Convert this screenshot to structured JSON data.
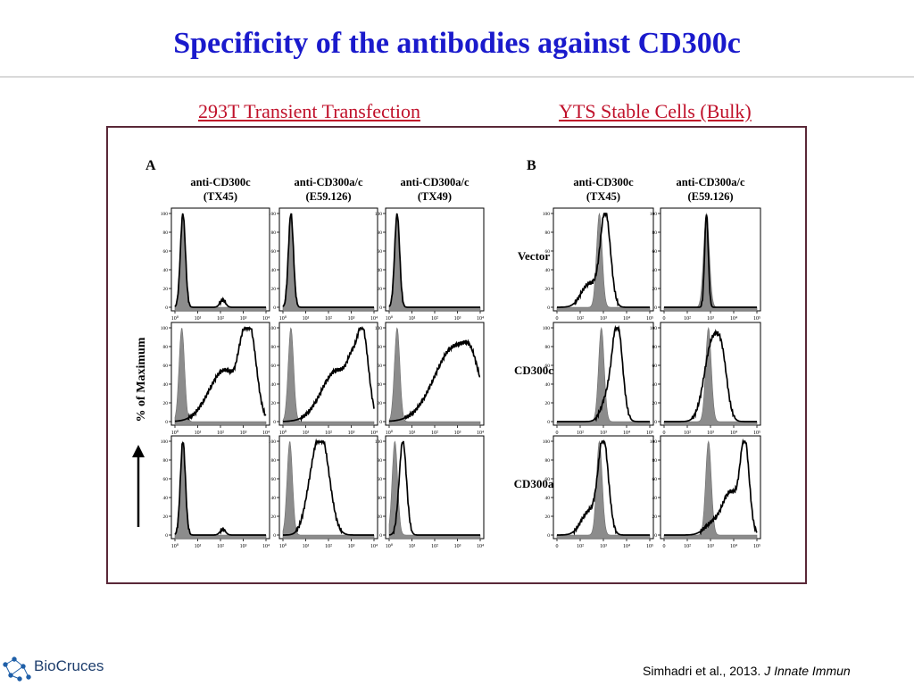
{
  "slide": {
    "title": "Specificity of the antibodies against CD300c",
    "section_left": "293T Transient Transfection",
    "section_right": "YTS Stable Cells (Bulk)",
    "citation_authors": "Simhadri et al., 2013.",
    "citation_journal": "J Innate Immun",
    "logo_text": "BioCruces"
  },
  "chart_data": [
    {
      "type": "histogram-grid",
      "panel": "A",
      "ylabel": "% of Maximum",
      "yticks": [
        "0",
        "20",
        "40",
        "60",
        "80",
        "100"
      ],
      "xticks": [
        "10⁰",
        "10¹",
        "10²",
        "10³",
        "10⁴"
      ],
      "columns": [
        {
          "line1": "anti-CD300c",
          "line2": "(TX45)"
        },
        {
          "line1": "anti-CD300a/c",
          "line2": "(E59.126)"
        },
        {
          "line1": "anti-CD300a/c",
          "line2": "(TX49)"
        }
      ],
      "rows": [
        "Vector",
        "CD300c",
        "CD300a"
      ],
      "series_colors": {
        "isotype_fill": "#8c8c8c",
        "stain_line": "#000000"
      },
      "histograms": [
        [
          {
            "isotype_peak_log": 0.35,
            "stain": [
              [
                0.35,
                0.11,
                100
              ],
              [
                2.1,
                0.12,
                8
              ]
            ]
          },
          {
            "isotype_peak_log": 0.35,
            "stain": [
              [
                0.35,
                0.11,
                100
              ]
            ]
          },
          {
            "isotype_peak_log": 0.35,
            "stain": [
              [
                0.35,
                0.11,
                100
              ]
            ]
          }
        ],
        [
          {
            "isotype_peak_log": 0.3,
            "stain": [
              [
                2.2,
                0.7,
                55
              ],
              [
                3.3,
                0.28,
                85
              ],
              [
                2.9,
                0.18,
                25
              ]
            ]
          },
          {
            "isotype_peak_log": 0.35,
            "stain": [
              [
                2.4,
                0.7,
                55
              ],
              [
                3.5,
                0.25,
                85
              ],
              [
                3.0,
                0.2,
                25
              ]
            ]
          },
          {
            "isotype_peak_log": 0.35,
            "stain": [
              [
                2.9,
                0.9,
                80
              ],
              [
                3.6,
                0.3,
                20
              ]
            ]
          }
        ],
        [
          {
            "isotype_peak_log": 0.35,
            "stain": [
              [
                0.35,
                0.11,
                100
              ],
              [
                2.1,
                0.12,
                6
              ]
            ]
          },
          {
            "isotype_peak_log": 0.3,
            "stain": [
              [
                1.7,
                0.35,
                100
              ],
              [
                1.2,
                0.3,
                30
              ]
            ]
          },
          {
            "isotype_peak_log": 0.25,
            "stain": [
              [
                0.6,
                0.16,
                100
              ]
            ]
          }
        ]
      ]
    },
    {
      "type": "histogram-grid",
      "panel": "B",
      "yticks": [
        "0",
        "20",
        "40",
        "60",
        "80",
        "100"
      ],
      "xticks": [
        "0",
        "10²",
        "10³",
        "10⁴",
        "10⁵"
      ],
      "columns": [
        {
          "line1": "anti-CD300c",
          "line2": "(TX45)"
        },
        {
          "line1": "anti-CD300a/c",
          "line2": "(E59.126)"
        }
      ],
      "rows": [
        "Vector",
        "CD300c",
        "CD300a"
      ],
      "series_colors": {
        "isotype_fill": "#8c8c8c",
        "stain_line": "#000000"
      },
      "histograms": [
        [
          {
            "isotype_peak_log": 2.1,
            "stain": [
              [
                2.4,
                0.25,
                100
              ],
              [
                1.6,
                0.4,
                25
              ]
            ]
          },
          {
            "isotype_peak_log": 2.1,
            "stain": [
              [
                2.1,
                0.09,
                100
              ]
            ]
          }
        ],
        [
          {
            "isotype_peak_log": 2.2,
            "stain": [
              [
                3.0,
                0.25,
                100
              ],
              [
                2.5,
                0.3,
                25
              ]
            ]
          },
          {
            "isotype_peak_log": 2.2,
            "stain": [
              [
                2.4,
                0.4,
                85
              ],
              [
                2.9,
                0.25,
                40
              ]
            ]
          }
        ],
        [
          {
            "isotype_peak_log": 2.1,
            "stain": [
              [
                2.3,
                0.25,
                100
              ],
              [
                1.6,
                0.4,
                25
              ]
            ]
          },
          {
            "isotype_peak_log": 2.2,
            "stain": [
              [
                4.0,
                0.22,
                95
              ],
              [
                3.3,
                0.4,
                45
              ],
              [
                2.4,
                0.4,
                12
              ]
            ]
          }
        ]
      ]
    }
  ]
}
